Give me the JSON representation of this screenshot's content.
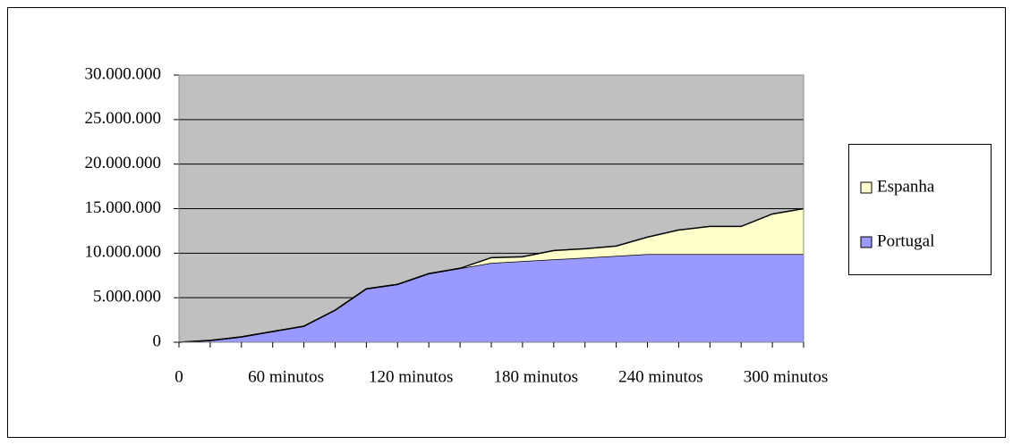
{
  "chart_data": {
    "type": "stacked-area",
    "categories": [
      "0",
      null,
      null,
      null,
      "60 minutos",
      null,
      null,
      null,
      "120 minutos",
      null,
      null,
      null,
      "180 minutos",
      null,
      null,
      null,
      "240 minutos",
      null,
      null,
      null,
      "300 minutos"
    ],
    "series": [
      {
        "name": "Portugal",
        "color": "#9999ff",
        "values": [
          0,
          200000,
          600000,
          1200000,
          1800000,
          3600000,
          6000000,
          6500000,
          7700000,
          8300000,
          8900000,
          9100000,
          9300000,
          9500000,
          9700000,
          9900000,
          9900000,
          9900000,
          9900000,
          9900000,
          9900000
        ]
      },
      {
        "name": "Espanha",
        "color": "#ffffcc",
        "values": [
          0,
          0,
          0,
          0,
          0,
          0,
          0,
          0,
          0,
          0,
          600000,
          500000,
          1000000,
          1000000,
          1100000,
          1900000,
          2700000,
          3100000,
          3100000,
          4500000,
          5100000
        ]
      }
    ],
    "ylim": [
      0,
      30000000
    ],
    "yticks": [
      0,
      {
        "value": 5000000,
        "label": "5.000.000"
      },
      {
        "value": 10000000,
        "label": "10.000.000"
      },
      {
        "value": 15000000,
        "label": "15.000.000"
      },
      {
        "value": 20000000,
        "label": "20.000.000"
      },
      {
        "value": 25000000,
        "label": "25.000.000"
      },
      {
        "value": 30000000,
        "label": "30.000.000"
      }
    ],
    "grid": true,
    "legend": "right",
    "plot_background": "#c0c0c0"
  }
}
